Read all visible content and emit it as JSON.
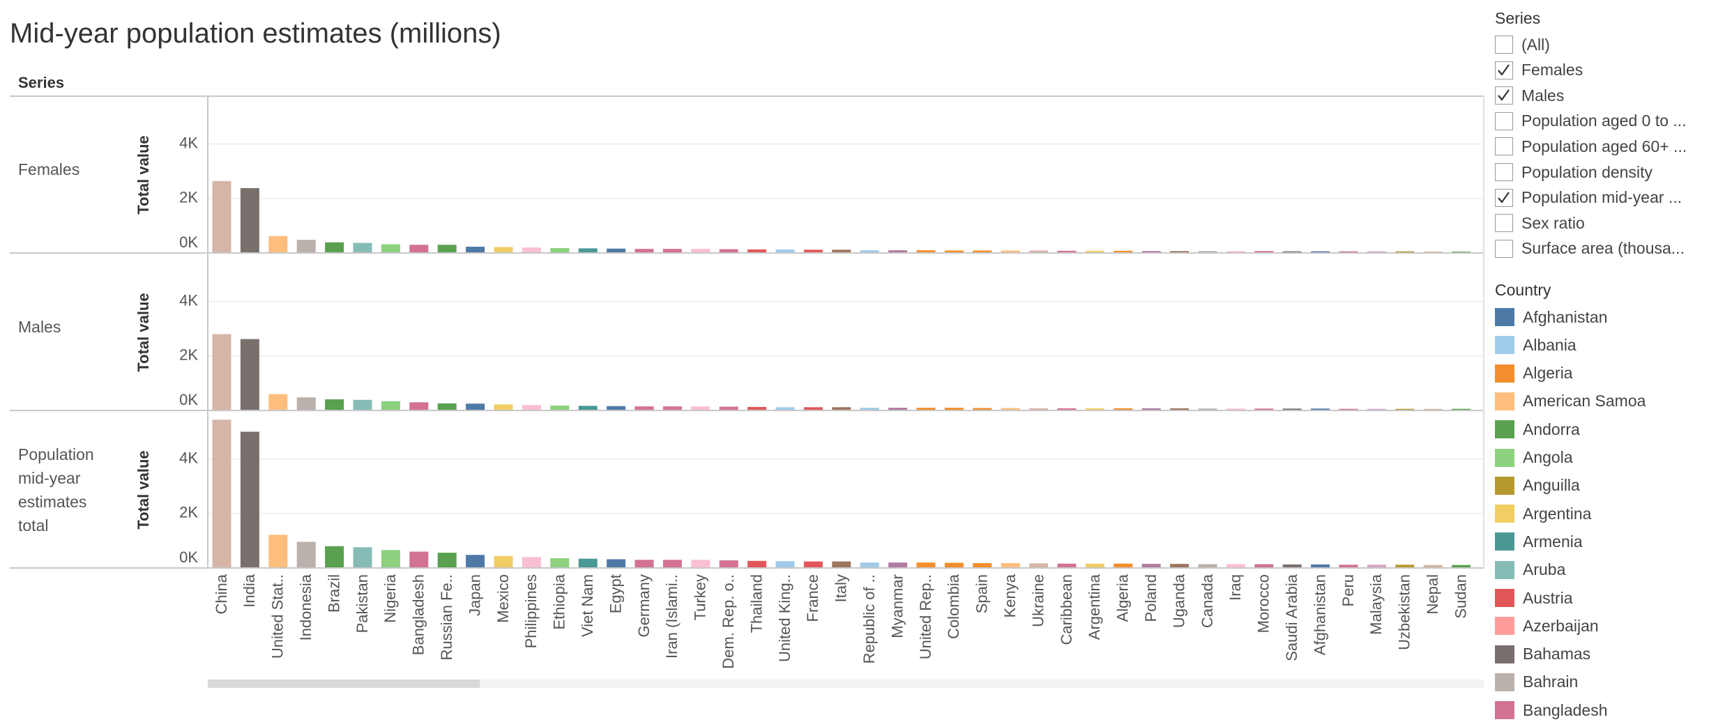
{
  "chart_data": {
    "type": "bar",
    "title": "Mid-year population estimates  (millions)",
    "facet_header": "Series",
    "y_axis_label": "Total value",
    "categories": [
      "China",
      "India",
      "United Stat..",
      "Indonesia",
      "Brazil",
      "Pakistan",
      "Nigeria",
      "Bangladesh",
      "Russian Fe..",
      "Japan",
      "Mexico",
      "Philippines",
      "Ethiopia",
      "Viet Nam",
      "Egypt",
      "Germany",
      "Iran (Islami..",
      "Turkey",
      "Dem. Rep. o..",
      "Thailand",
      "United King..",
      "France",
      "Italy",
      "Republic of ..",
      "Myanmar",
      "United Rep..",
      "Colombia",
      "Spain",
      "Kenya",
      "Ukraine",
      "Caribbean",
      "Argentina",
      "Algeria",
      "Poland",
      "Uganda",
      "Canada",
      "Iraq",
      "Morocco",
      "Saudi Arabia",
      "Afghanistan",
      "Peru",
      "Malaysia",
      "Uzbekistan",
      "Nepal",
      "Sudan"
    ],
    "colors": [
      "#d7b5a6",
      "#79706e",
      "#ffbe7d",
      "#bab0ac",
      "#59a14f",
      "#86bcb6",
      "#8cd17d",
      "#d37295",
      "#59a14f",
      "#4e79a7",
      "#f1ce63",
      "#fabfd2",
      "#8cd17d",
      "#499894",
      "#4e79a7",
      "#d37295",
      "#d37295",
      "#fabfd2",
      "#d37295",
      "#e15759",
      "#a0cbe8",
      "#e15759",
      "#9d7660",
      "#a0cbe8",
      "#b07aa1",
      "#f28e2b",
      "#f28e2b",
      "#f28e2b",
      "#ffbe7d",
      "#d7b5a6",
      "#d37295",
      "#f1ce63",
      "#f28e2b",
      "#b07aa1",
      "#9d7660",
      "#bab0ac",
      "#fabfd2",
      "#d37295",
      "#79706e",
      "#4e79a7",
      "#d37295",
      "#d4a6c8",
      "#b6992d",
      "#d7b5a6",
      "#59a14f"
    ],
    "series": [
      {
        "name": "Females",
        "values": [
          2640,
          2380,
          620,
          480,
          390,
          370,
          320,
          300,
          300,
          230,
          220,
          200,
          180,
          170,
          160,
          150,
          150,
          150,
          140,
          130,
          130,
          120,
          120,
          100,
          100,
          100,
          90,
          90,
          90,
          90,
          80,
          80,
          80,
          70,
          70,
          70,
          70,
          70,
          60,
          60,
          60,
          60,
          60,
          50,
          50
        ]
      },
      {
        "name": "Males",
        "values": [
          2800,
          2620,
          600,
          480,
          410,
          390,
          340,
          300,
          260,
          250,
          220,
          200,
          180,
          170,
          160,
          150,
          150,
          150,
          140,
          130,
          120,
          120,
          120,
          100,
          100,
          100,
          100,
          90,
          90,
          80,
          80,
          80,
          80,
          80,
          80,
          70,
          70,
          70,
          70,
          70,
          60,
          60,
          60,
          60,
          60
        ]
      },
      {
        "name": "Population mid-year estimates total",
        "values": [
          5440,
          5000,
          1220,
          960,
          800,
          760,
          660,
          600,
          560,
          480,
          440,
          400,
          360,
          340,
          320,
          300,
          300,
          300,
          280,
          260,
          250,
          240,
          240,
          200,
          200,
          200,
          190,
          180,
          180,
          170,
          160,
          160,
          160,
          150,
          150,
          140,
          140,
          140,
          130,
          130,
          120,
          120,
          120,
          110,
          110
        ]
      }
    ],
    "ylim": [
      0,
      5600
    ],
    "yticks": [
      {
        "value": 0,
        "label": "0K"
      },
      {
        "value": 2000,
        "label": "2K"
      },
      {
        "value": 4000,
        "label": "4K"
      }
    ],
    "grid": true
  },
  "filters": {
    "series": {
      "title": "Series",
      "items": [
        {
          "label": "(All)",
          "checked": false
        },
        {
          "label": "Females",
          "checked": true
        },
        {
          "label": "Males",
          "checked": true
        },
        {
          "label": "Population aged 0 to ...",
          "checked": false
        },
        {
          "label": "Population aged 60+ ...",
          "checked": false
        },
        {
          "label": "Population density",
          "checked": false
        },
        {
          "label": "Population mid-year ...",
          "checked": true
        },
        {
          "label": "Sex ratio",
          "checked": false
        },
        {
          "label": "Surface area (thousa...",
          "checked": false
        }
      ]
    },
    "country": {
      "title": "Country",
      "items": [
        {
          "label": "Afghanistan",
          "color": "#4e79a7"
        },
        {
          "label": "Albania",
          "color": "#a0cbe8"
        },
        {
          "label": "Algeria",
          "color": "#f28e2b"
        },
        {
          "label": "American Samoa",
          "color": "#ffbe7d"
        },
        {
          "label": "Andorra",
          "color": "#59a14f"
        },
        {
          "label": "Angola",
          "color": "#8cd17d"
        },
        {
          "label": "Anguilla",
          "color": "#b6992d"
        },
        {
          "label": "Argentina",
          "color": "#f1ce63"
        },
        {
          "label": "Armenia",
          "color": "#499894"
        },
        {
          "label": "Aruba",
          "color": "#86bcb6"
        },
        {
          "label": "Austria",
          "color": "#e15759"
        },
        {
          "label": "Azerbaijan",
          "color": "#ff9d9a"
        },
        {
          "label": "Bahamas",
          "color": "#79706e"
        },
        {
          "label": "Bahrain",
          "color": "#bab0ac"
        },
        {
          "label": "Bangladesh",
          "color": "#d37295"
        }
      ]
    }
  }
}
